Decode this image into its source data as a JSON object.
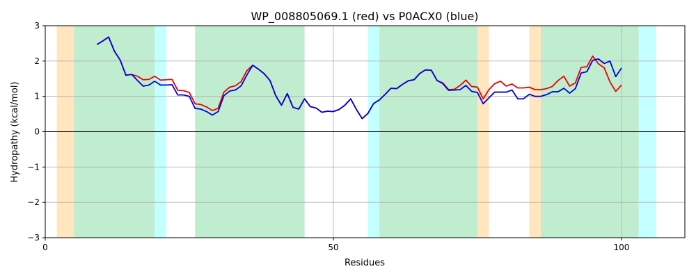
{
  "chart_data": {
    "type": "line",
    "title": "WP_008805069.1 (red) vs P0ACX0 (blue)",
    "xlabel": "Residues",
    "ylabel": "Hydropathy (kcal/mol)",
    "xlim": [
      0,
      111
    ],
    "ylim": [
      -3,
      3
    ],
    "x_ticks": [
      0,
      50,
      100
    ],
    "y_ticks": [
      -3,
      -2,
      -1,
      0,
      1,
      2,
      3
    ],
    "grid": true,
    "zero_line": true,
    "colors": {
      "red_series": "#ee0000",
      "blue_series": "#0000dd",
      "orange_band": "#ffe6bf",
      "green_band": "#c0ecd0",
      "cyan_band": "#c4ffff",
      "grid": "#b0b0b0"
    },
    "bands": [
      {
        "start": 2,
        "end": 5,
        "color": "orange"
      },
      {
        "start": 5,
        "end": 19,
        "color": "green"
      },
      {
        "start": 19,
        "end": 21,
        "color": "cyan"
      },
      {
        "start": 26,
        "end": 45,
        "color": "green"
      },
      {
        "start": 56,
        "end": 58,
        "color": "cyan"
      },
      {
        "start": 58,
        "end": 75,
        "color": "green"
      },
      {
        "start": 75,
        "end": 77,
        "color": "orange"
      },
      {
        "start": 84,
        "end": 86,
        "color": "orange"
      },
      {
        "start": 86,
        "end": 103,
        "color": "green"
      },
      {
        "start": 103,
        "end": 106,
        "color": "cyan"
      }
    ],
    "x": [
      9,
      10,
      11,
      12,
      13,
      14,
      15,
      16,
      17,
      18,
      19,
      20,
      21,
      22,
      23,
      24,
      25,
      26,
      27,
      28,
      29,
      30,
      31,
      32,
      33,
      34,
      35,
      36,
      37,
      38,
      39,
      40,
      41,
      42,
      43,
      44,
      45,
      46,
      47,
      48,
      49,
      50,
      51,
      52,
      53,
      54,
      55,
      56,
      57,
      58,
      59,
      60,
      61,
      62,
      63,
      64,
      65,
      66,
      67,
      68,
      69,
      70,
      71,
      72,
      73,
      74,
      75,
      76,
      77,
      78,
      79,
      80,
      81,
      82,
      83,
      84,
      85,
      86,
      87,
      88,
      89,
      90,
      91,
      92,
      93,
      94,
      95,
      96,
      97,
      98,
      99,
      100
    ],
    "series": [
      {
        "color": "red",
        "values": [
          2.47,
          2.57,
          2.68,
          2.28,
          2.03,
          1.6,
          1.62,
          1.57,
          1.47,
          1.48,
          1.57,
          1.46,
          1.47,
          1.48,
          1.17,
          1.16,
          1.11,
          0.79,
          0.77,
          0.7,
          0.6,
          0.66,
          1.12,
          1.26,
          1.3,
          1.42,
          1.73,
          1.88,
          1.77,
          1.64,
          1.45,
          1.02,
          0.75,
          1.08,
          0.69,
          0.64,
          0.93,
          0.71,
          0.67,
          0.55,
          0.58,
          0.57,
          0.63,
          0.75,
          0.93,
          0.63,
          0.37,
          0.52,
          0.8,
          0.9,
          1.06,
          1.23,
          1.22,
          1.34,
          1.44,
          1.47,
          1.65,
          1.75,
          1.74,
          1.45,
          1.38,
          1.19,
          1.2,
          1.31,
          1.46,
          1.28,
          1.26,
          0.93,
          1.19,
          1.36,
          1.43,
          1.29,
          1.35,
          1.24,
          1.24,
          1.26,
          1.19,
          1.19,
          1.22,
          1.28,
          1.45,
          1.57,
          1.29,
          1.38,
          1.82,
          1.84,
          2.14,
          1.92,
          1.81,
          1.41,
          1.14,
          1.32
        ]
      },
      {
        "color": "blue",
        "values": [
          2.47,
          2.57,
          2.68,
          2.28,
          2.03,
          1.6,
          1.62,
          1.45,
          1.29,
          1.32,
          1.43,
          1.32,
          1.32,
          1.33,
          1.04,
          1.04,
          1.0,
          0.66,
          0.64,
          0.57,
          0.47,
          0.57,
          1.02,
          1.15,
          1.18,
          1.3,
          1.61,
          1.88,
          1.77,
          1.64,
          1.45,
          1.02,
          0.75,
          1.08,
          0.69,
          0.64,
          0.93,
          0.71,
          0.67,
          0.55,
          0.58,
          0.57,
          0.63,
          0.75,
          0.93,
          0.63,
          0.37,
          0.52,
          0.8,
          0.9,
          1.06,
          1.23,
          1.22,
          1.34,
          1.44,
          1.47,
          1.65,
          1.75,
          1.74,
          1.45,
          1.36,
          1.17,
          1.18,
          1.19,
          1.31,
          1.14,
          1.11,
          0.79,
          0.96,
          1.12,
          1.12,
          1.12,
          1.18,
          0.93,
          0.93,
          1.06,
          1.0,
          1.0,
          1.05,
          1.13,
          1.13,
          1.23,
          1.09,
          1.22,
          1.66,
          1.7,
          2.02,
          2.06,
          1.93,
          2.0,
          1.56,
          1.8
        ]
      }
    ]
  }
}
